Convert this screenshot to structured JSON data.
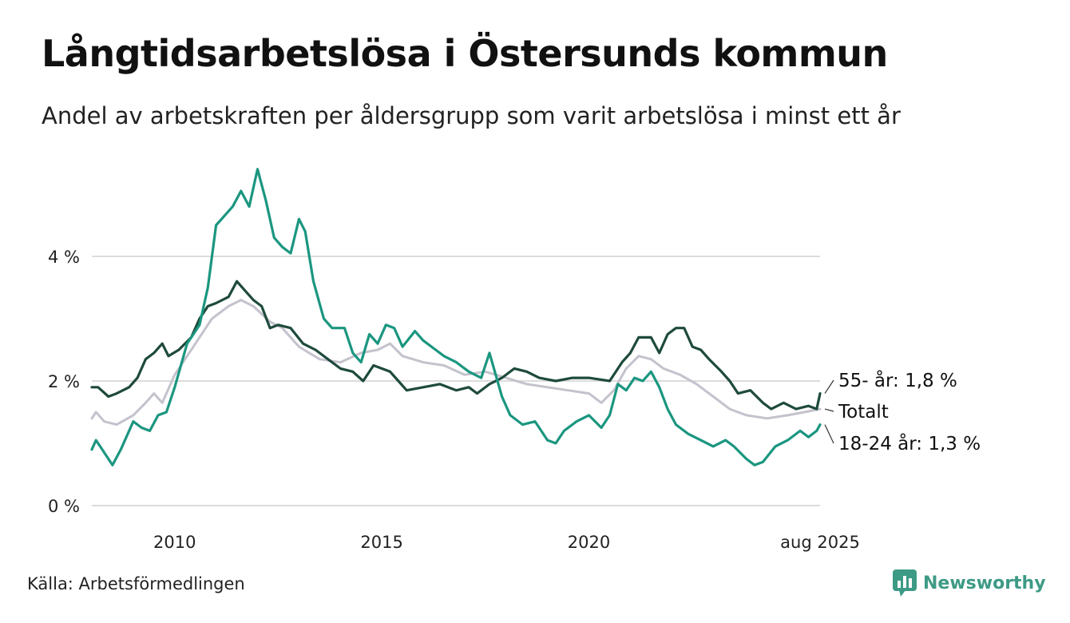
{
  "title": "Långtidsarbetslösa i Östersunds kommun",
  "subtitle": "Andel av arbetskraften per åldersgrupp som varit arbetslösa i minst ett år",
  "source": "Källa: Arbetsförmedlingen",
  "brand": {
    "name": "Newsworthy",
    "icon": "bar-chart-speech-icon",
    "color": "#3d9a85"
  },
  "chart_data": {
    "type": "line",
    "x_unit": "year",
    "x_range": [
      2008.0,
      2025.58
    ],
    "ylim": [
      0,
      5.5
    ],
    "y_ticks": [
      {
        "value": 0,
        "label": "0 %"
      },
      {
        "value": 2,
        "label": "2 %"
      },
      {
        "value": 4,
        "label": "4 %"
      }
    ],
    "x_ticks": [
      {
        "value": 2010,
        "label": "2010"
      },
      {
        "value": 2015,
        "label": "2015"
      },
      {
        "value": 2020,
        "label": "2020"
      },
      {
        "value": 2025.58,
        "label": "aug 2025"
      }
    ],
    "grid": true,
    "series": [
      {
        "key": "totalt",
        "label": "Totalt",
        "color": "#c4c2cc",
        "points": [
          [
            2008.0,
            1.4
          ],
          [
            2008.1,
            1.5
          ],
          [
            2008.3,
            1.35
          ],
          [
            2008.6,
            1.3
          ],
          [
            2009.0,
            1.45
          ],
          [
            2009.3,
            1.65
          ],
          [
            2009.5,
            1.8
          ],
          [
            2009.7,
            1.65
          ],
          [
            2010.0,
            2.1
          ],
          [
            2010.5,
            2.6
          ],
          [
            2010.9,
            3.0
          ],
          [
            2011.3,
            3.2
          ],
          [
            2011.6,
            3.3
          ],
          [
            2011.9,
            3.2
          ],
          [
            2012.3,
            2.95
          ],
          [
            2012.6,
            2.85
          ],
          [
            2013.0,
            2.55
          ],
          [
            2013.5,
            2.35
          ],
          [
            2014.0,
            2.3
          ],
          [
            2014.5,
            2.45
          ],
          [
            2014.9,
            2.5
          ],
          [
            2015.2,
            2.6
          ],
          [
            2015.5,
            2.4
          ],
          [
            2016.0,
            2.3
          ],
          [
            2016.5,
            2.25
          ],
          [
            2017.0,
            2.1
          ],
          [
            2017.5,
            2.15
          ],
          [
            2018.0,
            2.05
          ],
          [
            2018.5,
            1.95
          ],
          [
            2019.0,
            1.9
          ],
          [
            2019.5,
            1.85
          ],
          [
            2020.0,
            1.8
          ],
          [
            2020.3,
            1.65
          ],
          [
            2020.6,
            1.85
          ],
          [
            2020.9,
            2.2
          ],
          [
            2021.2,
            2.4
          ],
          [
            2021.5,
            2.35
          ],
          [
            2021.8,
            2.2
          ],
          [
            2022.2,
            2.1
          ],
          [
            2022.6,
            1.95
          ],
          [
            2023.0,
            1.75
          ],
          [
            2023.4,
            1.55
          ],
          [
            2023.8,
            1.45
          ],
          [
            2024.3,
            1.4
          ],
          [
            2024.8,
            1.45
          ],
          [
            2025.2,
            1.5
          ],
          [
            2025.58,
            1.55
          ]
        ]
      },
      {
        "key": "55",
        "label": "55- år: 1,8 %",
        "color": "#1e4a3c",
        "points": [
          [
            2008.0,
            1.9
          ],
          [
            2008.15,
            1.9
          ],
          [
            2008.4,
            1.75
          ],
          [
            2008.6,
            1.8
          ],
          [
            2008.9,
            1.9
          ],
          [
            2009.1,
            2.05
          ],
          [
            2009.3,
            2.35
          ],
          [
            2009.5,
            2.45
          ],
          [
            2009.7,
            2.6
          ],
          [
            2009.85,
            2.4
          ],
          [
            2010.1,
            2.5
          ],
          [
            2010.4,
            2.7
          ],
          [
            2010.6,
            3.0
          ],
          [
            2010.8,
            3.2
          ],
          [
            2011.0,
            3.25
          ],
          [
            2011.3,
            3.35
          ],
          [
            2011.5,
            3.6
          ],
          [
            2011.7,
            3.45
          ],
          [
            2011.9,
            3.3
          ],
          [
            2012.1,
            3.2
          ],
          [
            2012.3,
            2.85
          ],
          [
            2012.5,
            2.9
          ],
          [
            2012.8,
            2.85
          ],
          [
            2013.1,
            2.6
          ],
          [
            2013.4,
            2.5
          ],
          [
            2013.7,
            2.35
          ],
          [
            2014.0,
            2.2
          ],
          [
            2014.3,
            2.15
          ],
          [
            2014.55,
            2.0
          ],
          [
            2014.8,
            2.25
          ],
          [
            2015.2,
            2.15
          ],
          [
            2015.4,
            2.0
          ],
          [
            2015.6,
            1.85
          ],
          [
            2016.0,
            1.9
          ],
          [
            2016.4,
            1.95
          ],
          [
            2016.8,
            1.85
          ],
          [
            2017.1,
            1.9
          ],
          [
            2017.3,
            1.8
          ],
          [
            2017.6,
            1.95
          ],
          [
            2017.9,
            2.05
          ],
          [
            2018.2,
            2.2
          ],
          [
            2018.5,
            2.15
          ],
          [
            2018.8,
            2.05
          ],
          [
            2019.2,
            2.0
          ],
          [
            2019.6,
            2.05
          ],
          [
            2020.0,
            2.05
          ],
          [
            2020.5,
            2.0
          ],
          [
            2020.8,
            2.3
          ],
          [
            2021.0,
            2.45
          ],
          [
            2021.2,
            2.7
          ],
          [
            2021.5,
            2.7
          ],
          [
            2021.7,
            2.45
          ],
          [
            2021.9,
            2.75
          ],
          [
            2022.1,
            2.85
          ],
          [
            2022.3,
            2.85
          ],
          [
            2022.5,
            2.55
          ],
          [
            2022.7,
            2.5
          ],
          [
            2022.9,
            2.35
          ],
          [
            2023.2,
            2.15
          ],
          [
            2023.4,
            2.0
          ],
          [
            2023.6,
            1.8
          ],
          [
            2023.9,
            1.85
          ],
          [
            2024.2,
            1.65
          ],
          [
            2024.4,
            1.55
          ],
          [
            2024.7,
            1.65
          ],
          [
            2025.0,
            1.55
          ],
          [
            2025.3,
            1.6
          ],
          [
            2025.5,
            1.55
          ],
          [
            2025.58,
            1.8
          ]
        ]
      },
      {
        "key": "18-24",
        "label": "18-24 år: 1,3 %",
        "color": "#1b9680",
        "points": [
          [
            2008.0,
            0.9
          ],
          [
            2008.1,
            1.05
          ],
          [
            2008.3,
            0.85
          ],
          [
            2008.5,
            0.65
          ],
          [
            2008.7,
            0.9
          ],
          [
            2009.0,
            1.35
          ],
          [
            2009.2,
            1.25
          ],
          [
            2009.4,
            1.2
          ],
          [
            2009.6,
            1.45
          ],
          [
            2009.8,
            1.5
          ],
          [
            2010.0,
            1.9
          ],
          [
            2010.3,
            2.6
          ],
          [
            2010.6,
            2.9
          ],
          [
            2010.8,
            3.5
          ],
          [
            2011.0,
            4.5
          ],
          [
            2011.2,
            4.65
          ],
          [
            2011.4,
            4.8
          ],
          [
            2011.6,
            5.05
          ],
          [
            2011.8,
            4.8
          ],
          [
            2012.0,
            5.4
          ],
          [
            2012.2,
            4.9
          ],
          [
            2012.4,
            4.3
          ],
          [
            2012.6,
            4.15
          ],
          [
            2012.8,
            4.05
          ],
          [
            2013.0,
            4.6
          ],
          [
            2013.15,
            4.4
          ],
          [
            2013.35,
            3.6
          ],
          [
            2013.6,
            3.0
          ],
          [
            2013.8,
            2.85
          ],
          [
            2014.1,
            2.85
          ],
          [
            2014.3,
            2.45
          ],
          [
            2014.5,
            2.3
          ],
          [
            2014.7,
            2.75
          ],
          [
            2014.9,
            2.6
          ],
          [
            2015.1,
            2.9
          ],
          [
            2015.3,
            2.85
          ],
          [
            2015.5,
            2.55
          ],
          [
            2015.8,
            2.8
          ],
          [
            2016.0,
            2.65
          ],
          [
            2016.3,
            2.5
          ],
          [
            2016.5,
            2.4
          ],
          [
            2016.8,
            2.3
          ],
          [
            2017.1,
            2.15
          ],
          [
            2017.4,
            2.05
          ],
          [
            2017.6,
            2.45
          ],
          [
            2017.9,
            1.75
          ],
          [
            2018.1,
            1.45
          ],
          [
            2018.4,
            1.3
          ],
          [
            2018.7,
            1.35
          ],
          [
            2019.0,
            1.05
          ],
          [
            2019.2,
            1.0
          ],
          [
            2019.4,
            1.2
          ],
          [
            2019.7,
            1.35
          ],
          [
            2020.0,
            1.45
          ],
          [
            2020.3,
            1.25
          ],
          [
            2020.5,
            1.45
          ],
          [
            2020.7,
            1.95
          ],
          [
            2020.9,
            1.85
          ],
          [
            2021.1,
            2.05
          ],
          [
            2021.3,
            2.0
          ],
          [
            2021.5,
            2.15
          ],
          [
            2021.7,
            1.9
          ],
          [
            2021.9,
            1.55
          ],
          [
            2022.1,
            1.3
          ],
          [
            2022.4,
            1.15
          ],
          [
            2022.7,
            1.05
          ],
          [
            2023.0,
            0.95
          ],
          [
            2023.3,
            1.05
          ],
          [
            2023.5,
            0.95
          ],
          [
            2023.8,
            0.75
          ],
          [
            2024.0,
            0.65
          ],
          [
            2024.2,
            0.7
          ],
          [
            2024.5,
            0.95
          ],
          [
            2024.8,
            1.05
          ],
          [
            2025.1,
            1.2
          ],
          [
            2025.3,
            1.1
          ],
          [
            2025.5,
            1.2
          ],
          [
            2025.58,
            1.3
          ]
        ]
      }
    ]
  }
}
